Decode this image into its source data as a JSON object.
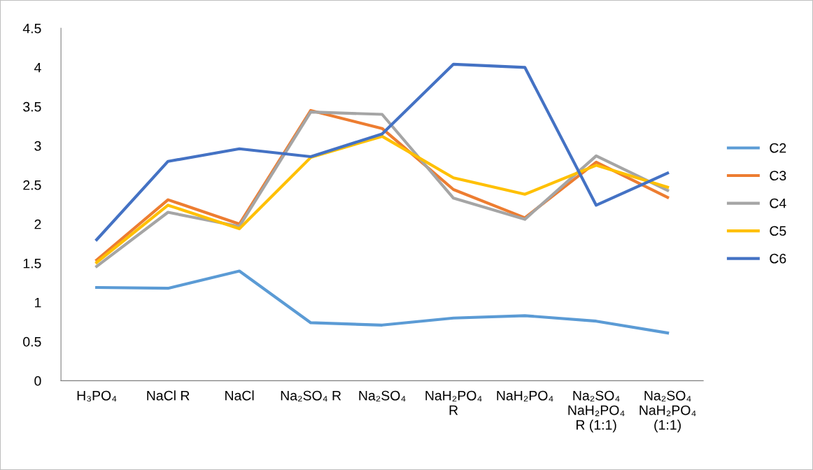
{
  "chart_data": {
    "type": "line",
    "categories": [
      "H₃PO₄",
      "NaCl R",
      "NaCl",
      "Na₂SO₄ R",
      "Na₂SO₄",
      "NaH₂PO₄\nR",
      "NaH₂PO₄",
      "Na₂SO₄\nNaH₂PO₄\nR (1:1)",
      "Na₂SO₄\nNaH₂PO₄\n(1:1)"
    ],
    "series": [
      {
        "name": "C2",
        "color": "#5b9bd5",
        "values": [
          1.19,
          1.18,
          1.4,
          0.74,
          0.71,
          0.8,
          0.83,
          0.76,
          0.61
        ]
      },
      {
        "name": "C3",
        "color": "#ed7d31",
        "values": [
          1.54,
          2.31,
          2.0,
          3.45,
          3.22,
          2.44,
          2.08,
          2.79,
          2.34
        ]
      },
      {
        "name": "C4",
        "color": "#a5a5a5",
        "values": [
          1.46,
          2.15,
          1.97,
          3.43,
          3.4,
          2.33,
          2.06,
          2.87,
          2.43
        ]
      },
      {
        "name": "C5",
        "color": "#ffc000",
        "values": [
          1.51,
          2.24,
          1.94,
          2.85,
          3.12,
          2.59,
          2.38,
          2.75,
          2.47
        ]
      },
      {
        "name": "C6",
        "color": "#4472c4",
        "values": [
          1.8,
          2.8,
          2.96,
          2.86,
          3.15,
          4.04,
          4.0,
          2.24,
          2.65
        ]
      }
    ],
    "ylim": [
      0,
      4.5
    ],
    "yticks": [
      0,
      0.5,
      1,
      1.5,
      2,
      2.5,
      3,
      3.5,
      4,
      4.5
    ],
    "grid": false,
    "legend": "right",
    "marker": "none",
    "line_style": "solid"
  }
}
